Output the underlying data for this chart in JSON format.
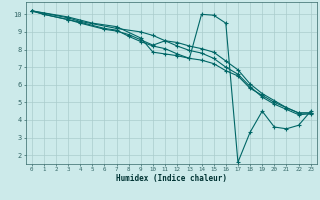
{
  "xlabel": "Humidex (Indice chaleur)",
  "xlim": [
    -0.5,
    23.5
  ],
  "ylim": [
    1.5,
    10.7
  ],
  "bg_color": "#cceaea",
  "grid_color": "#aacccc",
  "line_color": "#006666",
  "line_width": 0.8,
  "marker": "+",
  "marker_size": 3,
  "curves": [
    [
      [
        0,
        10.2
      ],
      [
        1,
        10.0
      ],
      [
        3,
        9.7
      ],
      [
        4,
        9.55
      ],
      [
        6,
        9.2
      ],
      [
        7,
        9.1
      ],
      [
        8,
        8.75
      ],
      [
        9,
        8.45
      ],
      [
        10,
        8.2
      ],
      [
        11,
        8.05
      ],
      [
        12,
        7.75
      ],
      [
        13,
        7.5
      ],
      [
        14,
        7.4
      ],
      [
        15,
        7.2
      ],
      [
        16,
        6.8
      ],
      [
        17,
        6.5
      ],
      [
        18,
        5.8
      ],
      [
        19,
        5.4
      ],
      [
        20,
        5.0
      ],
      [
        21,
        4.7
      ],
      [
        22,
        4.4
      ],
      [
        23,
        4.4
      ]
    ],
    [
      [
        0,
        10.2
      ],
      [
        1,
        10.0
      ],
      [
        3,
        9.7
      ],
      [
        4,
        9.5
      ],
      [
        6,
        9.15
      ],
      [
        7,
        9.05
      ],
      [
        8,
        8.85
      ],
      [
        9,
        8.55
      ],
      [
        10,
        8.25
      ],
      [
        11,
        8.5
      ],
      [
        12,
        8.4
      ],
      [
        13,
        8.2
      ],
      [
        14,
        8.05
      ],
      [
        15,
        7.85
      ],
      [
        16,
        7.35
      ],
      [
        17,
        6.85
      ],
      [
        18,
        6.05
      ],
      [
        19,
        5.5
      ],
      [
        20,
        5.1
      ],
      [
        21,
        4.7
      ],
      [
        22,
        4.4
      ],
      [
        23,
        4.4
      ]
    ],
    [
      [
        0,
        10.2
      ],
      [
        3,
        9.85
      ],
      [
        5,
        9.5
      ],
      [
        7,
        9.3
      ],
      [
        9,
        8.65
      ],
      [
        10,
        7.85
      ],
      [
        11,
        7.75
      ],
      [
        12,
        7.65
      ],
      [
        13,
        7.5
      ],
      [
        14,
        10.0
      ],
      [
        15,
        9.95
      ],
      [
        16,
        9.5
      ],
      [
        17,
        1.6
      ],
      [
        18,
        3.3
      ],
      [
        19,
        4.5
      ],
      [
        20,
        3.6
      ],
      [
        21,
        3.5
      ],
      [
        22,
        3.7
      ],
      [
        23,
        4.5
      ]
    ],
    [
      [
        0,
        10.2
      ],
      [
        3,
        9.8
      ],
      [
        4,
        9.6
      ],
      [
        7,
        9.2
      ],
      [
        9,
        9.0
      ],
      [
        10,
        8.8
      ],
      [
        11,
        8.5
      ],
      [
        12,
        8.2
      ],
      [
        13,
        7.95
      ],
      [
        14,
        7.8
      ],
      [
        15,
        7.5
      ],
      [
        16,
        7.0
      ],
      [
        17,
        6.6
      ],
      [
        18,
        5.9
      ],
      [
        19,
        5.3
      ],
      [
        20,
        4.9
      ],
      [
        21,
        4.6
      ],
      [
        22,
        4.3
      ],
      [
        23,
        4.35
      ]
    ]
  ]
}
